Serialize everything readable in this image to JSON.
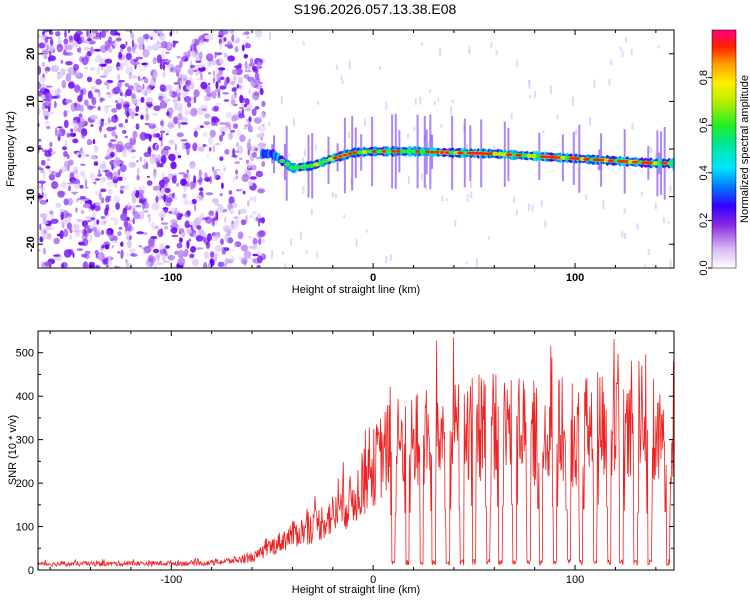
{
  "title": "S196.2026.057.13.38.E08",
  "chart_data": [
    {
      "type": "heatmap",
      "xlabel": "Height of straight line (km)",
      "ylabel": "Frequency (Hz)",
      "xlim": [
        -166,
        149
      ],
      "ylim": [
        -25,
        25
      ],
      "x_ticks": [
        -100,
        0,
        100
      ],
      "y_ticks": [
        -20,
        -10,
        0,
        10,
        20
      ],
      "colorbar": {
        "label": "Normalized spectral amplitude",
        "range": [
          0,
          1
        ],
        "ticks": [
          0.0,
          0.2,
          0.4,
          0.6,
          0.8
        ]
      },
      "ridge": {
        "heights": [
          -50,
          -40,
          -30,
          -20,
          -10,
          0,
          20,
          40,
          60,
          80,
          100,
          120,
          140,
          149
        ],
        "frequencies": [
          -1,
          -4,
          -3.5,
          -2,
          -0.8,
          -0.5,
          -0.5,
          -0.8,
          -1,
          -1.5,
          -2,
          -2.5,
          -3,
          -3
        ]
      }
    },
    {
      "type": "line",
      "xlabel": "Height of straight line (km)",
      "ylabel": "SNR (10 * v/v)",
      "xlim": [
        -166,
        149
      ],
      "ylim": [
        0,
        550
      ],
      "x_ticks": [
        -100,
        0,
        100
      ],
      "y_ticks": [
        0,
        100,
        200,
        300,
        400,
        500
      ],
      "series": [
        {
          "name": "SNR",
          "color": "#ee2222",
          "envelope_x": [
            -166,
            -80,
            -60,
            -50,
            -40,
            -30,
            -20,
            -10,
            0,
            5,
            10,
            20,
            30,
            40,
            50,
            60,
            70,
            80,
            90,
            100,
            110,
            120,
            130,
            140,
            149
          ],
          "envelope_y": [
            15,
            18,
            30,
            60,
            90,
            110,
            140,
            180,
            260,
            300,
            320,
            330,
            340,
            350,
            370,
            360,
            380,
            350,
            370,
            330,
            380,
            350,
            330,
            320,
            350
          ],
          "dropouts_x": [
            10,
            17,
            24,
            30,
            37,
            44,
            50,
            57,
            63,
            70,
            77,
            83,
            90,
            97,
            103,
            110,
            117,
            123,
            130,
            137,
            146
          ]
        }
      ]
    }
  ]
}
